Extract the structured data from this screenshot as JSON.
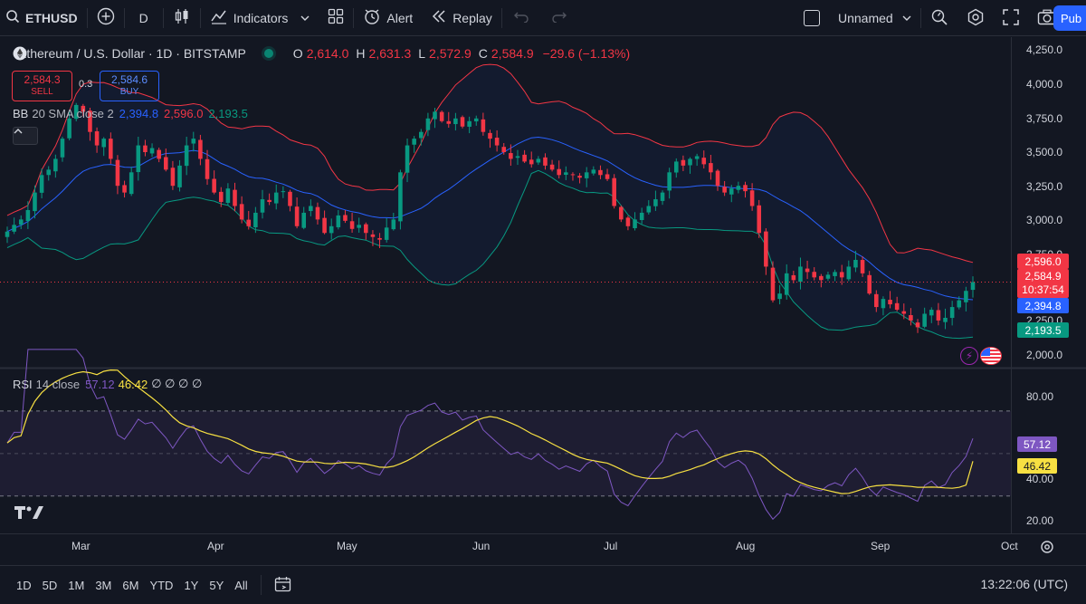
{
  "toolbar": {
    "symbol": "ETHUSD",
    "interval": "D",
    "indicators_label": "Indicators",
    "alert_label": "Alert",
    "replay_label": "Replay",
    "layout_name": "Unnamed",
    "publish_label": "Pub"
  },
  "legend": {
    "title": "Ethereum / U.S. Dollar · 1D · BITSTAMP",
    "o_key": "O",
    "o_val": "2,614.0",
    "h_key": "H",
    "h_val": "2,631.3",
    "l_key": "L",
    "l_val": "2,572.9",
    "c_key": "C",
    "c_val": "2,584.9",
    "change": "−29.6 (−1.13%)",
    "sell_price": "2,584.3",
    "sell_label": "SELL",
    "spread": "0.3",
    "buy_price": "2,584.6",
    "buy_label": "BUY",
    "bb_name": "BB",
    "bb_params": "20 SMA close 2",
    "bb_basis": "2,394.8",
    "bb_upper": "2,596.0",
    "bb_lower": "2,193.5",
    "rsi_name": "RSI",
    "rsi_params": "14 close",
    "rsi_val": "57.12",
    "rsi_ma": "46.42",
    "rsi_extra": "∅ ∅ ∅ ∅"
  },
  "price_axis": {
    "ticks": [
      "4,250.0",
      "4,000.0",
      "3,750.0",
      "3,500.0",
      "3,250.0",
      "3,000.0",
      "2,750.0",
      "2,250.0",
      "2,000.0"
    ],
    "tags": {
      "upper": "2,596.0",
      "last": "2,584.9",
      "countdown": "10:37:54",
      "basis": "2,394.8",
      "lower": "2,193.5"
    }
  },
  "rsi_axis": {
    "ticks": [
      "80.00",
      "40.00",
      "20.00"
    ],
    "tags": {
      "rsi": "57.12",
      "ma": "46.42"
    }
  },
  "time_axis": [
    "Mar",
    "Apr",
    "May",
    "Jun",
    "Jul",
    "Aug",
    "Sep",
    "Oct"
  ],
  "bottombar": {
    "ranges": [
      "1D",
      "5D",
      "1M",
      "3M",
      "6M",
      "YTD",
      "1Y",
      "5Y",
      "All"
    ],
    "clock": "13:22:06 (UTC)"
  },
  "colors": {
    "up": "#089981",
    "down": "#f23645",
    "bb_basis": "#2962ff",
    "bb_upper": "#f23645",
    "bb_lower": "#089981",
    "rsi": "#7e57c2",
    "rsi_ma": "#f7e042"
  },
  "chart_data": {
    "type": "candlestick",
    "x_range": [
      "2024-02-21",
      "2024-09-21"
    ],
    "ylim": [
      1950,
      4350
    ],
    "close_series": [
      2960,
      3010,
      3050,
      3120,
      3250,
      3380,
      3420,
      3500,
      3650,
      3800,
      3900,
      3850,
      3700,
      3600,
      3650,
      3500,
      3300,
      3250,
      3400,
      3600,
      3550,
      3580,
      3500,
      3420,
      3300,
      3450,
      3600,
      3650,
      3500,
      3350,
      3250,
      3180,
      3280,
      3150,
      3050,
      3000,
      3100,
      3200,
      3180,
      3250,
      3260,
      3150,
      3000,
      3100,
      3150,
      3050,
      2950,
      3000,
      3080,
      3040,
      2980,
      3010,
      2950,
      2920,
      2900,
      2990,
      3050,
      3400,
      3600,
      3650,
      3700,
      3800,
      3850,
      3780,
      3760,
      3800,
      3740,
      3780,
      3800,
      3700,
      3650,
      3600,
      3550,
      3500,
      3520,
      3480,
      3460,
      3500,
      3450,
      3420,
      3380,
      3400,
      3380,
      3360,
      3400,
      3420,
      3380,
      3350,
      3150,
      3050,
      3000,
      3050,
      3100,
      3150,
      3200,
      3250,
      3400,
      3480,
      3450,
      3500,
      3520,
      3460,
      3400,
      3300,
      3250,
      3280,
      3300,
      3260,
      3150,
      2950,
      2700,
      2450,
      2500,
      2650,
      2600,
      2700,
      2660,
      2620,
      2600,
      2640,
      2660,
      2620,
      2700,
      2750,
      2650,
      2500,
      2400,
      2460,
      2420,
      2380,
      2350,
      2300,
      2250,
      2350,
      2380,
      2300,
      2320,
      2400,
      2450,
      2520,
      2585
    ],
    "rsi_14": {
      "last": 57.12,
      "ma": 46.42,
      "ylim": [
        15,
        90
      ],
      "bands": [
        70,
        30
      ]
    }
  }
}
